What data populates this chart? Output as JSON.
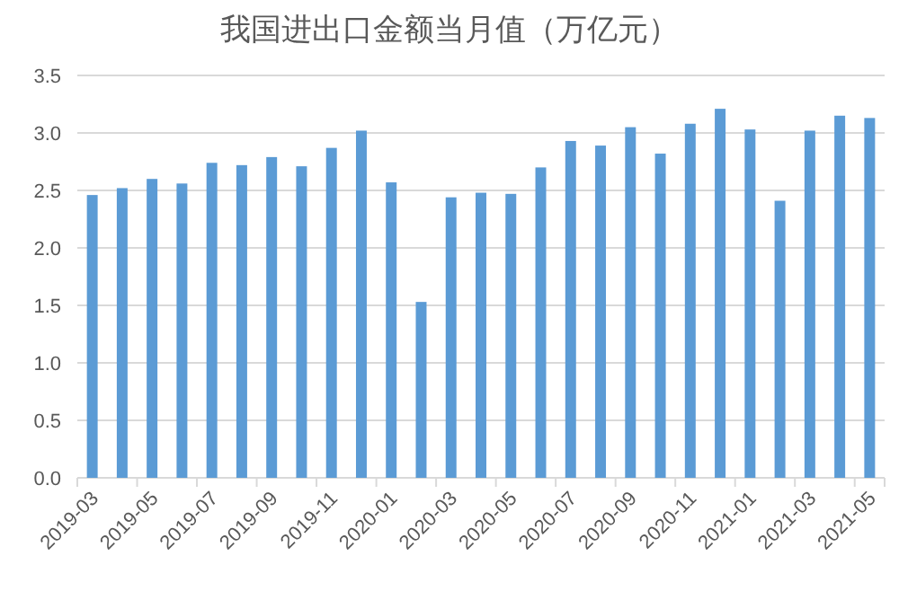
{
  "chart_data": {
    "type": "bar",
    "title": "我国进出口金额当月值（万亿元）",
    "categories": [
      "2019-03",
      null,
      "2019-05",
      null,
      "2019-07",
      null,
      "2019-09",
      null,
      "2019-11",
      null,
      "2020-01",
      null,
      "2020-03",
      null,
      "2020-05",
      null,
      "2020-07",
      null,
      "2020-09",
      null,
      "2020-11",
      null,
      "2021-01",
      null,
      "2021-03",
      null,
      "2021-05"
    ],
    "values": [
      2.46,
      2.52,
      2.6,
      2.56,
      2.74,
      2.72,
      2.79,
      2.71,
      2.87,
      3.02,
      2.57,
      1.53,
      2.44,
      2.48,
      2.47,
      2.7,
      2.93,
      2.89,
      3.05,
      2.82,
      3.08,
      3.21,
      3.03,
      2.41,
      3.02,
      3.15,
      3.13
    ],
    "color": "#5b9bd5",
    "ylim": [
      0,
      3.5
    ],
    "yticks": [
      {
        "value": 0,
        "label": "0.0"
      },
      0.5,
      {
        "value": 1,
        "label": "1.0"
      },
      1.5,
      {
        "value": 2,
        "label": "2.0"
      },
      2.5,
      {
        "value": 3,
        "label": "3.0"
      },
      3.5
    ],
    "grid": "y"
  }
}
